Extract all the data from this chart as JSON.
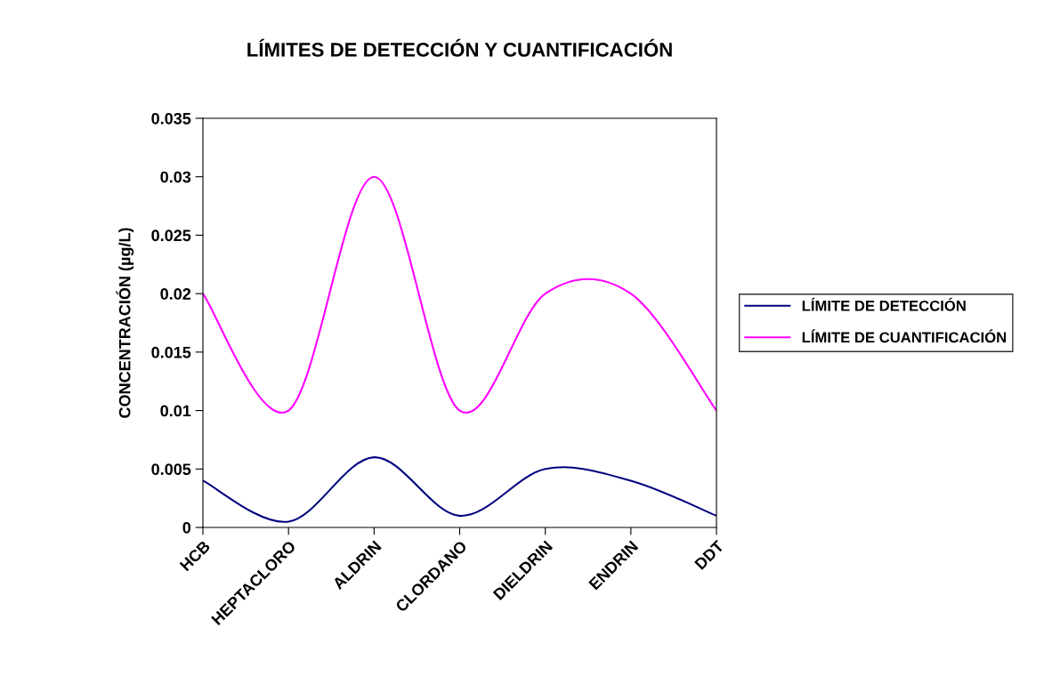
{
  "chart_data": {
    "type": "line",
    "title": "LÍMITES DE DETECCIÓN Y CUANTIFICACIÓN",
    "ylabel": "CONCENTRACIÓN (µg/L)",
    "categories": [
      "HCB",
      "HEPTACLORO",
      "ALDRIN",
      "CLORDANO",
      "DIELDRIN",
      "ENDRIN",
      "DDT"
    ],
    "series": [
      {
        "name": "LÍMITE DE DETECCIÓN",
        "color": "#000080",
        "values": [
          0.004,
          0.0005,
          0.006,
          0.001,
          0.005,
          0.004,
          0.001
        ]
      },
      {
        "name": "LÍMITE DE CUANTIFICACIÓN",
        "color": "#ff00ff",
        "values": [
          0.02,
          0.01,
          0.03,
          0.01,
          0.02,
          0.02,
          0.01
        ]
      }
    ],
    "ylim": [
      0,
      0.035
    ],
    "yticks": [
      0,
      0.005,
      0.01,
      0.015,
      0.02,
      0.025,
      0.03,
      0.035
    ],
    "grid": false,
    "legend": "right",
    "marker": "none",
    "line_style": "solid"
  }
}
